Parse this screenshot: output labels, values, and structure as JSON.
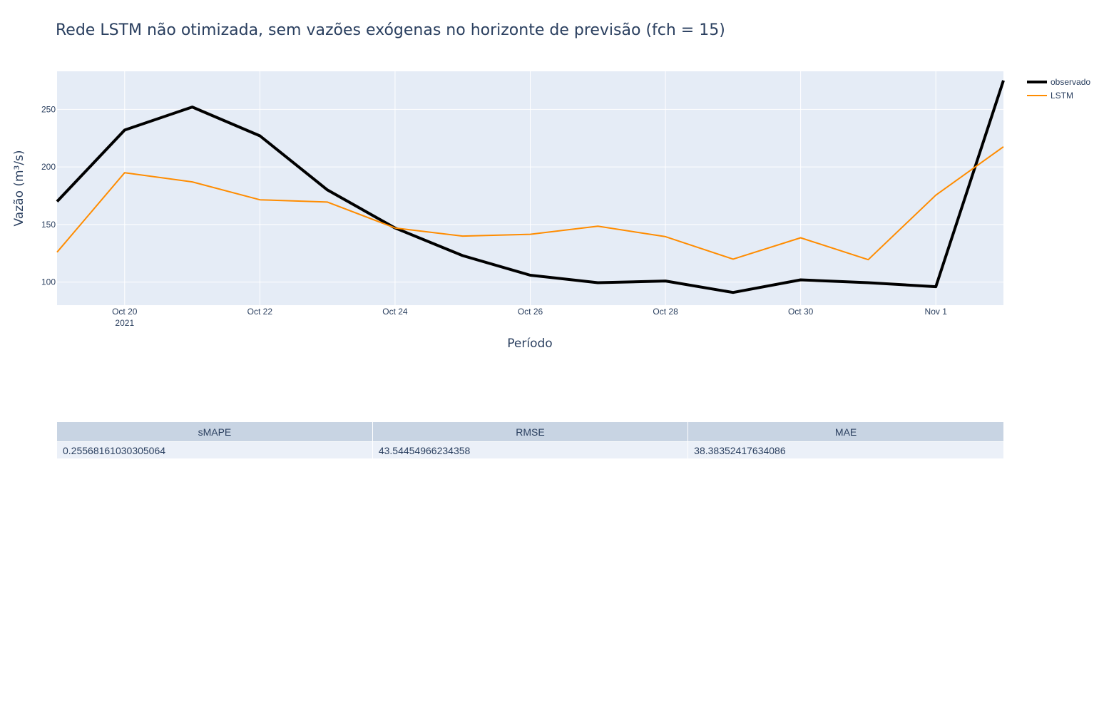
{
  "chart_data": {
    "type": "line",
    "title": "Rede LSTM não otimizada, sem vazões exógenas no horizonte de previsão (fch = 15)",
    "xlabel": "Período",
    "ylabel": "Vazão (m³/s)",
    "x": [
      "2021-10-19",
      "2021-10-20",
      "2021-10-21",
      "2021-10-22",
      "2021-10-23",
      "2021-10-24",
      "2021-10-25",
      "2021-10-26",
      "2021-10-27",
      "2021-10-28",
      "2021-10-29",
      "2021-10-30",
      "2021-10-31",
      "2021-11-01",
      "2021-11-02"
    ],
    "xlim": [
      "2021-10-19",
      "2021-11-02"
    ],
    "ylim": [
      80,
      283
    ],
    "x_ticks": [
      {
        "date": "2021-10-20",
        "label": "Oct 20",
        "sublabel": "2021"
      },
      {
        "date": "2021-10-22",
        "label": "Oct 22",
        "sublabel": ""
      },
      {
        "date": "2021-10-24",
        "label": "Oct 24",
        "sublabel": ""
      },
      {
        "date": "2021-10-26",
        "label": "Oct 26",
        "sublabel": ""
      },
      {
        "date": "2021-10-28",
        "label": "Oct 28",
        "sublabel": ""
      },
      {
        "date": "2021-10-30",
        "label": "Oct 30",
        "sublabel": ""
      },
      {
        "date": "2021-11-01",
        "label": "Nov 1",
        "sublabel": ""
      }
    ],
    "y_ticks": [
      100,
      150,
      200,
      250
    ],
    "grid": true,
    "legend_position": "top-right",
    "series": [
      {
        "name": "observado",
        "color": "#000000",
        "values": [
          170,
          232,
          252,
          227,
          180,
          147,
          123,
          106,
          99.5,
          101,
          91,
          102,
          99.5,
          96,
          275
        ]
      },
      {
        "name": "LSTM",
        "color": "#ff8c00",
        "values": [
          126,
          195,
          187,
          171.5,
          169.5,
          147,
          140,
          141.5,
          148.5,
          139.5,
          120,
          138.5,
          119.5,
          175.5,
          217.5
        ]
      }
    ]
  },
  "metrics_table": {
    "headers": [
      "sMAPE",
      "RMSE",
      "MAE"
    ],
    "values": [
      "0.25568161030305064",
      "43.54454966234358",
      "38.38352417634086"
    ]
  },
  "colors": {
    "plot_background": "#e5ecf6",
    "grid": "#ffffff",
    "text": "#2a3f5f",
    "table_header": "#c8d4e3",
    "table_cell": "#ebf0f8"
  }
}
